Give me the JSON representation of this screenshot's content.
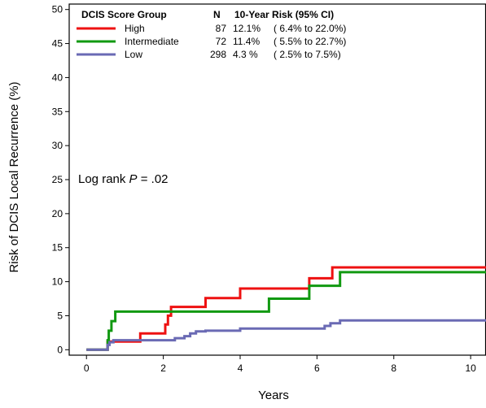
{
  "chart_data": {
    "type": "line",
    "step": true,
    "xlabel": "Years",
    "ylabel": "Risk of DCIS Local Recurrence (%)",
    "xlim": [
      -0.45,
      10.4
    ],
    "ylim": [
      -0.8,
      50.8
    ],
    "xticks": [
      0,
      2,
      4,
      6,
      8,
      10
    ],
    "yticks": [
      0,
      5,
      10,
      15,
      20,
      25,
      30,
      35,
      40,
      45,
      50
    ],
    "grid": false,
    "legend": {
      "placement": "top-left",
      "header_group": "DCIS Score Group",
      "header_n": "N",
      "header_risk": "10-Year Risk (95% CI)"
    },
    "annotation": {
      "prefix": "Log rank ",
      "p": "P",
      "suffix": " = .02"
    },
    "series": [
      {
        "name": "High",
        "color": "#ee1111",
        "n": "87",
        "risk": "12.1%",
        "ci": "( 6.4% to 22.0%)",
        "points": [
          [
            0,
            0
          ],
          [
            0.55,
            0
          ],
          [
            0.55,
            1.2
          ],
          [
            1.4,
            1.2
          ],
          [
            1.4,
            2.4
          ],
          [
            2.05,
            2.4
          ],
          [
            2.05,
            3.7
          ],
          [
            2.12,
            3.7
          ],
          [
            2.12,
            5.0
          ],
          [
            2.2,
            5.0
          ],
          [
            2.2,
            6.3
          ],
          [
            3.1,
            6.3
          ],
          [
            3.1,
            7.6
          ],
          [
            4.0,
            7.6
          ],
          [
            4.0,
            9.0
          ],
          [
            5.8,
            9.0
          ],
          [
            5.8,
            10.5
          ],
          [
            6.4,
            10.5
          ],
          [
            6.4,
            12.1
          ],
          [
            10.4,
            12.1
          ]
        ]
      },
      {
        "name": "Intermediate",
        "color": "#119911",
        "n": "72",
        "risk": "11.4%",
        "ci": "( 5.5% to 22.7%)",
        "points": [
          [
            0,
            0
          ],
          [
            0.55,
            0
          ],
          [
            0.55,
            1.4
          ],
          [
            0.58,
            1.4
          ],
          [
            0.58,
            2.8
          ],
          [
            0.65,
            2.8
          ],
          [
            0.65,
            4.2
          ],
          [
            0.75,
            4.2
          ],
          [
            0.75,
            5.6
          ],
          [
            4.75,
            5.6
          ],
          [
            4.75,
            7.5
          ],
          [
            5.8,
            7.5
          ],
          [
            5.8,
            9.4
          ],
          [
            6.6,
            9.4
          ],
          [
            6.6,
            11.4
          ],
          [
            10.4,
            11.4
          ]
        ]
      },
      {
        "name": "Low",
        "color": "#6a6ab4",
        "n": "298",
        "risk": "4.3 %",
        "ci": "( 2.5% to 7.5%)",
        "points": [
          [
            0,
            0
          ],
          [
            0.55,
            0
          ],
          [
            0.55,
            0.7
          ],
          [
            0.6,
            0.7
          ],
          [
            0.6,
            1.1
          ],
          [
            0.7,
            1.1
          ],
          [
            0.7,
            1.4
          ],
          [
            2.3,
            1.4
          ],
          [
            2.3,
            1.7
          ],
          [
            2.55,
            1.7
          ],
          [
            2.55,
            2.0
          ],
          [
            2.7,
            2.0
          ],
          [
            2.7,
            2.4
          ],
          [
            2.85,
            2.4
          ],
          [
            2.85,
            2.7
          ],
          [
            3.1,
            2.7
          ],
          [
            3.1,
            2.8
          ],
          [
            4.0,
            2.8
          ],
          [
            4.0,
            3.1
          ],
          [
            6.2,
            3.1
          ],
          [
            6.2,
            3.5
          ],
          [
            6.35,
            3.5
          ],
          [
            6.35,
            3.9
          ],
          [
            6.6,
            3.9
          ],
          [
            6.6,
            4.3
          ],
          [
            10.4,
            4.3
          ]
        ]
      }
    ]
  }
}
